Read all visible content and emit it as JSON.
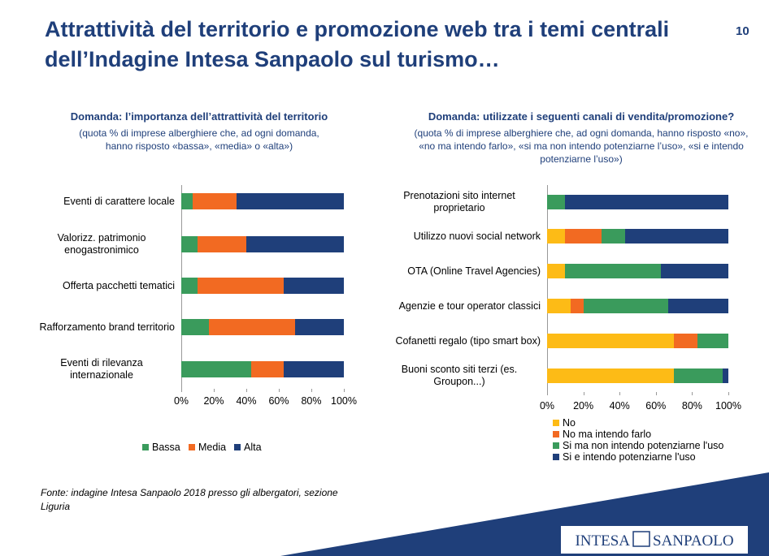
{
  "title": "Attrattività del territorio e promozione web tra i temi centrali dell’Indagine Intesa Sanpaolo sul turismo…",
  "page_number": "10",
  "source": "Fonte: indagine Intesa Sanpaolo 2018 presso gli albergatori, sezione Liguria",
  "logo": {
    "left": "INTESA",
    "right": "SANPAOLO"
  },
  "chart_data": [
    {
      "type": "bar",
      "orientation": "horizontal",
      "stacked": true,
      "title": "Domanda: l’importanza dell’attrattività del territorio",
      "subtitle": "(quota % di imprese alberghiere che, ad ogni domanda, hanno risposto «bassa», «media» o «alta»)",
      "categories": [
        "Eventi di carattere locale",
        "Valorizz. patrimonio enogastronimico",
        "Offerta pacchetti tematici",
        "Rafforzamento brand territorio",
        "Eventi di rilevanza internazionale"
      ],
      "series": [
        {
          "name": "Bassa",
          "color": "#3a9b5c",
          "values": [
            7,
            10,
            10,
            17,
            43
          ]
        },
        {
          "name": "Media",
          "color": "#f26a22",
          "values": [
            27,
            30,
            53,
            53,
            20
          ]
        },
        {
          "name": "Alta",
          "color": "#1f3f7a",
          "values": [
            66,
            60,
            37,
            30,
            37
          ]
        }
      ],
      "xlim": [
        0,
        100
      ],
      "xticks": [
        {
          "value": 0,
          "label": "0%"
        },
        {
          "value": 20,
          "label": "20%"
        },
        {
          "value": 40,
          "label": "40%"
        },
        {
          "value": 60,
          "label": "60%"
        },
        {
          "value": 80,
          "label": "80%"
        },
        {
          "value": 100,
          "label": "100%"
        }
      ],
      "legend": "bottom"
    },
    {
      "type": "bar",
      "orientation": "horizontal",
      "stacked": true,
      "title": "Domanda: utilizzate i seguenti canali di vendita/promozione?",
      "subtitle": "(quota % di imprese alberghiere che, ad ogni domanda, hanno risposto «no», «no ma intendo farlo», «si ma non intendo potenziarne l’uso», «si e intendo potenziarne l’uso»)",
      "categories": [
        "Prenotazioni sito internet proprietario",
        "Utilizzo nuovi social network",
        "OTA (Online Travel Agencies)",
        "Agenzie e tour operator classici",
        "Cofanetti regalo (tipo smart box)",
        "Buoni sconto siti terzi (es. Groupon...)"
      ],
      "series": [
        {
          "name": "No",
          "color": "#fdbb16",
          "values": [
            0,
            10,
            10,
            13,
            70,
            70
          ]
        },
        {
          "name": "No ma intendo farlo",
          "color": "#f26a22",
          "values": [
            0,
            20,
            0,
            7,
            13,
            0
          ]
        },
        {
          "name": "Si ma non intendo potenziarne l'uso",
          "color": "#3a9b5c",
          "values": [
            10,
            13,
            53,
            47,
            17,
            27
          ]
        },
        {
          "name": "Si e intendo potenziarne l'uso",
          "color": "#1f3f7a",
          "values": [
            90,
            57,
            37,
            33,
            0,
            3
          ]
        }
      ],
      "xlim": [
        0,
        100
      ],
      "xticks": [
        {
          "value": 0,
          "label": "0%"
        },
        {
          "value": 20,
          "label": "20%"
        },
        {
          "value": 40,
          "label": "40%"
        },
        {
          "value": 60,
          "label": "60%"
        },
        {
          "value": 80,
          "label": "80%"
        },
        {
          "value": 100,
          "label": "100%"
        }
      ],
      "legend": "bottom"
    }
  ]
}
